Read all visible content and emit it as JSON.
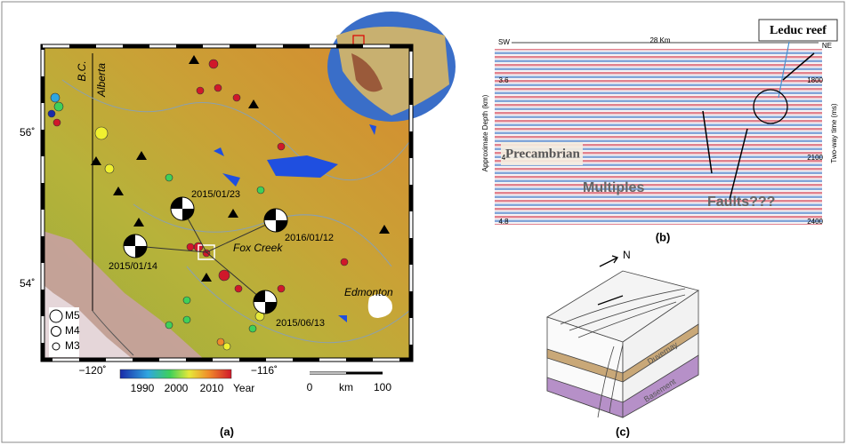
{
  "map": {
    "region_labels": [
      "B.C.",
      "Alberta"
    ],
    "lat_labels": [
      "56˚",
      "54˚"
    ],
    "lon_labels": [
      "−120˚",
      "−116˚"
    ],
    "events": [
      "2015/01/23",
      "2016/01/12",
      "2015/01/14",
      "2015/06/13"
    ],
    "towns": [
      "Fox Creek",
      "Edmonton"
    ],
    "magnitude_legend": [
      "M5",
      "M4",
      "M3"
    ],
    "colorbar": {
      "ticks": [
        "1990",
        "2000",
        "2010"
      ],
      "label": "Year"
    },
    "scale": {
      "ticks": [
        "0",
        "100"
      ],
      "unit": "km"
    },
    "caption": "(a)"
  },
  "seismic": {
    "ends": [
      "SW",
      "NE"
    ],
    "width": "28 Km",
    "depth_axis": {
      "label": "Approximate Depth (km)",
      "ticks": [
        "3.6",
        "4",
        "4.8"
      ]
    },
    "time_axis": {
      "label": "Two-way time (ms)",
      "ticks": [
        "1800",
        "2100",
        "2400"
      ]
    },
    "annotations": [
      "Precambrian",
      "Multiples",
      "Faults???"
    ],
    "callout": "Leduc reef",
    "caption": "(b)"
  },
  "block": {
    "north": "N",
    "layers": [
      "Duvernay",
      "Basement"
    ],
    "caption": "(c)"
  }
}
